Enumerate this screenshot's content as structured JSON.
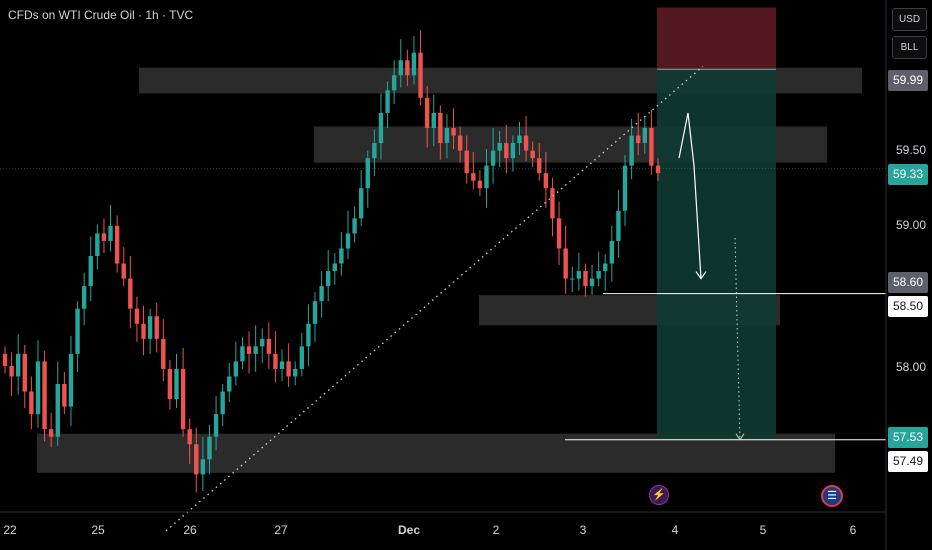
{
  "header": {
    "title": "CFDs on WTI Crude Oil · 1h · TVC"
  },
  "scale": {
    "currency": "USD",
    "unit": "BLL"
  },
  "price_axis": {
    "labels": [
      "59.50",
      "59.00",
      "58.00"
    ],
    "tags": [
      {
        "value": "59.99",
        "style": "grey"
      },
      {
        "value": "59.33",
        "style": "teal"
      },
      {
        "value": "58.60",
        "style": "grey"
      },
      {
        "value": "58.50",
        "style": "white"
      },
      {
        "value": "57.53",
        "style": "teal"
      },
      {
        "value": "57.49",
        "style": "white"
      }
    ]
  },
  "time_axis": {
    "labels": [
      {
        "text": "22",
        "bold": false
      },
      {
        "text": "25",
        "bold": false
      },
      {
        "text": "26",
        "bold": false
      },
      {
        "text": "27",
        "bold": false
      },
      {
        "text": "Dec",
        "bold": true
      },
      {
        "text": "2",
        "bold": false
      },
      {
        "text": "3",
        "bold": false
      },
      {
        "text": "4",
        "bold": false
      },
      {
        "text": "5",
        "bold": false
      },
      {
        "text": "6",
        "bold": false
      }
    ]
  },
  "events": [
    {
      "icon": "lightning-icon",
      "glyph": "⚡"
    },
    {
      "icon": "us-flag-icon",
      "glyph": "☰"
    }
  ],
  "colors": {
    "up": "#26a69a",
    "down": "#ef5350",
    "zone": "#3a3a3a",
    "stop_zone": "#5c1a24",
    "target_zone": "#0e3b32",
    "teal_tag": "#26a69a"
  },
  "chart_data": {
    "type": "candlestick",
    "title": "CFDs on WTI Crude Oil · 1h · TVC",
    "ylim": [
      57.05,
      60.45
    ],
    "x_ticks": [
      "22",
      "25",
      "26",
      "27",
      "Dec",
      "2",
      "3",
      "4",
      "5",
      "6"
    ],
    "last_price": 59.33,
    "close_path": [
      58.02,
      57.95,
      58.1,
      57.85,
      57.7,
      58.05,
      57.6,
      57.55,
      57.9,
      57.75,
      58.1,
      58.4,
      58.55,
      58.75,
      58.9,
      58.85,
      58.95,
      58.7,
      58.6,
      58.4,
      58.3,
      58.2,
      58.35,
      58.2,
      58.0,
      57.8,
      58.0,
      57.6,
      57.5,
      57.3,
      57.4,
      57.55,
      57.7,
      57.85,
      57.95,
      58.05,
      58.15,
      58.1,
      58.15,
      58.2,
      58.1,
      58.0,
      58.05,
      57.95,
      58.0,
      58.15,
      58.3,
      58.45,
      58.55,
      58.65,
      58.7,
      58.8,
      58.9,
      59.0,
      59.2,
      59.4,
      59.5,
      59.7,
      59.85,
      59.95,
      60.05,
      59.95,
      60.1,
      59.8,
      59.6,
      59.7,
      59.5,
      59.6,
      59.55,
      59.45,
      59.3,
      59.25,
      59.2,
      59.35,
      59.45,
      59.5,
      59.4,
      59.5,
      59.55,
      59.45,
      59.4,
      59.3,
      59.2,
      59.0,
      58.8,
      58.6,
      58.6,
      58.65,
      58.55,
      58.6,
      58.65,
      58.7,
      58.85,
      59.05,
      59.35,
      59.55,
      59.5,
      59.6,
      59.35,
      59.3
    ],
    "zones": [
      {
        "top": 60.0,
        "bottom": 59.83
      },
      {
        "top": 59.61,
        "bottom": 59.37
      },
      {
        "top": 58.49,
        "bottom": 58.29
      },
      {
        "top": 57.57,
        "bottom": 57.31
      }
    ],
    "trade": {
      "entry": 59.99,
      "stop": 60.4,
      "target": 57.53
    },
    "levels": [
      58.5,
      57.53
    ],
    "trendline": {
      "from": 57.31,
      "to": 59.99
    },
    "projection": [
      59.4,
      59.7,
      59.35,
      58.6
    ],
    "projection_target": 57.53
  }
}
